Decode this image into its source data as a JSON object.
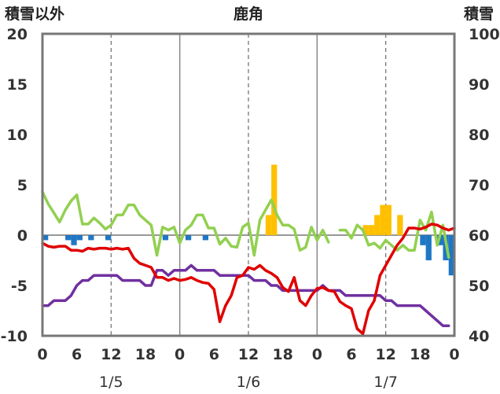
{
  "chart_data": {
    "type": "bar+line",
    "title": "鹿角",
    "ylabel_left": "積雪以外",
    "ylabel_right": "積雪",
    "ylim_left": [
      -10,
      20
    ],
    "ylim_right": [
      40,
      100
    ],
    "yticks_left": [
      "20",
      "15",
      "10",
      "5",
      "0",
      "-5",
      "-10"
    ],
    "yticks_right": [
      "100",
      "90",
      "80",
      "70",
      "60",
      "50",
      "40"
    ],
    "xlim": [
      0,
      72
    ],
    "xticks": [
      {
        "x": 0,
        "label": "0"
      },
      {
        "x": 6,
        "label": "6"
      },
      {
        "x": 12,
        "label": "12"
      },
      {
        "x": 18,
        "label": "18"
      },
      {
        "x": 24,
        "label": "0"
      },
      {
        "x": 30,
        "label": "6"
      },
      {
        "x": 36,
        "label": "12"
      },
      {
        "x": 42,
        "label": "18"
      },
      {
        "x": 48,
        "label": "0"
      },
      {
        "x": 54,
        "label": "6"
      },
      {
        "x": 60,
        "label": "12"
      },
      {
        "x": 66,
        "label": "18"
      },
      {
        "x": 72,
        "label": "0"
      }
    ],
    "day_labels": [
      {
        "x": 12,
        "label": "1/5"
      },
      {
        "x": 36,
        "label": "1/6"
      },
      {
        "x": 60,
        "label": "1/7"
      }
    ],
    "colors": {
      "precip": "#ffc000",
      "snow_change": "#1f77c4",
      "temperature": "#e00000",
      "wind": "#92d050",
      "snow_depth": "#7030a0"
    },
    "bars_precip": [
      {
        "x": 39.5,
        "v": 2
      },
      {
        "x": 40.5,
        "v": 7
      },
      {
        "x": 56.5,
        "v": 1
      },
      {
        "x": 57.5,
        "v": 1
      },
      {
        "x": 58.5,
        "v": 2
      },
      {
        "x": 59.5,
        "v": 3
      },
      {
        "x": 60.5,
        "v": 3
      },
      {
        "x": 62.5,
        "v": 2
      }
    ],
    "bars_snow_change": [
      {
        "x": 0.5,
        "v": -0.5
      },
      {
        "x": 4.5,
        "v": -0.5
      },
      {
        "x": 5.5,
        "v": -1
      },
      {
        "x": 6.5,
        "v": -0.5
      },
      {
        "x": 8.5,
        "v": -0.5
      },
      {
        "x": 11.5,
        "v": -0.5
      },
      {
        "x": 21.5,
        "v": -0.5
      },
      {
        "x": 25.5,
        "v": -0.5
      },
      {
        "x": 28.5,
        "v": -0.5
      },
      {
        "x": 66.5,
        "v": -1
      },
      {
        "x": 67.5,
        "v": -2.5
      },
      {
        "x": 69.5,
        "v": -1
      },
      {
        "x": 70.5,
        "v": -2.5
      },
      {
        "x": 71.5,
        "v": -4
      }
    ],
    "line_temperature": [
      [
        0,
        -0.8
      ],
      [
        1,
        -1.1
      ],
      [
        2,
        -1.2
      ],
      [
        3,
        -1.1
      ],
      [
        4,
        -1.1
      ],
      [
        5,
        -1.5
      ],
      [
        6,
        -1.5
      ],
      [
        7,
        -1.6
      ],
      [
        8,
        -1.3
      ],
      [
        9,
        -1.4
      ],
      [
        10,
        -1.3
      ],
      [
        11,
        -1.3
      ],
      [
        12,
        -1.4
      ],
      [
        13,
        -1.3
      ],
      [
        14,
        -1.4
      ],
      [
        15,
        -1.3
      ],
      [
        16,
        -2.3
      ],
      [
        17,
        -2.8
      ],
      [
        18,
        -3.0
      ],
      [
        19,
        -3.2
      ],
      [
        20,
        -4.2
      ],
      [
        21,
        -4.2
      ],
      [
        22,
        -4.5
      ],
      [
        23,
        -4.3
      ],
      [
        24,
        -4.5
      ],
      [
        25,
        -4.4
      ],
      [
        26,
        -4.2
      ],
      [
        27,
        -4.5
      ],
      [
        28,
        -4.7
      ],
      [
        29,
        -4.8
      ],
      [
        30,
        -5.4
      ],
      [
        31,
        -8.6
      ],
      [
        32,
        -7.0
      ],
      [
        33,
        -6.0
      ],
      [
        34,
        -4.2
      ],
      [
        35,
        -4.0
      ],
      [
        36,
        -3.2
      ],
      [
        37,
        -3.4
      ],
      [
        38,
        -3.0
      ],
      [
        39,
        -3.5
      ],
      [
        40,
        -3.8
      ],
      [
        41,
        -4.2
      ],
      [
        42,
        -5.2
      ],
      [
        43,
        -5.6
      ],
      [
        44,
        -4.2
      ],
      [
        45,
        -6.5
      ],
      [
        46,
        -7.0
      ],
      [
        47,
        -6.0
      ],
      [
        48,
        -5.3
      ],
      [
        49,
        -5.2
      ],
      [
        50,
        -5.5
      ],
      [
        51,
        -5.6
      ],
      [
        52,
        -6.6
      ],
      [
        53,
        -7.0
      ],
      [
        54,
        -7.3
      ],
      [
        55,
        -9.3
      ],
      [
        56,
        -9.8
      ],
      [
        57,
        -7.5
      ],
      [
        58,
        -6.5
      ],
      [
        59,
        -4.0
      ],
      [
        60,
        -3.0
      ],
      [
        61,
        -2.0
      ],
      [
        62,
        -1.0
      ],
      [
        63,
        -0.3
      ],
      [
        64,
        0.7
      ],
      [
        65,
        0.7
      ],
      [
        66,
        0.6
      ],
      [
        67,
        0.8
      ],
      [
        68,
        1.1
      ],
      [
        69,
        1.0
      ],
      [
        70,
        0.7
      ],
      [
        71,
        0.5
      ],
      [
        72,
        0.7
      ]
    ],
    "line_wind": [
      [
        0,
        4.3
      ],
      [
        1,
        3.1
      ],
      [
        2,
        2.2
      ],
      [
        3,
        1.3
      ],
      [
        4,
        2.5
      ],
      [
        5,
        3.4
      ],
      [
        6,
        4.0
      ],
      [
        7,
        1.1
      ],
      [
        8,
        1.1
      ],
      [
        9,
        1.7
      ],
      [
        10,
        1.2
      ],
      [
        11,
        0.6
      ],
      [
        12,
        1.0
      ],
      [
        13,
        2.0
      ],
      [
        14,
        2.0
      ],
      [
        15,
        3.0
      ],
      [
        16,
        3.0
      ],
      [
        17,
        2.0
      ],
      [
        18,
        1.5
      ],
      [
        19,
        1.0
      ],
      [
        20,
        -2.0
      ],
      [
        21,
        0.8
      ],
      [
        22,
        0.5
      ],
      [
        23,
        0.8
      ],
      [
        24,
        -0.8
      ],
      [
        25,
        0.5
      ],
      [
        26,
        1.0
      ],
      [
        27,
        2.0
      ],
      [
        28,
        2.0
      ],
      [
        29,
        0.7
      ],
      [
        30,
        0.7
      ],
      [
        31,
        -0.9
      ],
      [
        32,
        -0.3
      ],
      [
        33,
        -1.1
      ],
      [
        34,
        -1.2
      ],
      [
        35,
        0.8
      ],
      [
        36,
        1.2
      ],
      [
        37,
        -2.0
      ],
      [
        38,
        1.5
      ],
      [
        39,
        2.5
      ],
      [
        40,
        3.5
      ],
      [
        41,
        2.0
      ],
      [
        42,
        1.0
      ],
      [
        43,
        1.0
      ],
      [
        44,
        0.6
      ],
      [
        45,
        -1.5
      ],
      [
        46,
        -1.2
      ],
      [
        47,
        0.8
      ],
      [
        48,
        -0.5
      ],
      [
        49,
        0.5
      ],
      [
        50,
        -0.7
      ],
      [
        null,
        null
      ],
      [
        52,
        0.5
      ],
      [
        53,
        0.5
      ],
      [
        54,
        -0.3
      ],
      [
        55,
        1.0
      ],
      [
        56,
        0.5
      ],
      [
        57,
        -1.0
      ],
      [
        58,
        -0.8
      ],
      [
        59,
        -1.3
      ],
      [
        60,
        -0.5
      ],
      [
        61,
        -1.0
      ],
      [
        62,
        -1.5
      ],
      [
        63,
        -1.0
      ],
      [
        64,
        -1.5
      ],
      [
        65,
        -1.5
      ],
      [
        66,
        1.5
      ],
      [
        67,
        0.5
      ],
      [
        68,
        2.3
      ],
      [
        69,
        -1.0
      ],
      [
        70,
        1.0
      ],
      [
        71,
        -2.2
      ]
    ],
    "line_snow_depth": [
      [
        0,
        46
      ],
      [
        1,
        46
      ],
      [
        2,
        47
      ],
      [
        3,
        47
      ],
      [
        4,
        47
      ],
      [
        5,
        48
      ],
      [
        6,
        50
      ],
      [
        7,
        51
      ],
      [
        8,
        51
      ],
      [
        9,
        52
      ],
      [
        10,
        52
      ],
      [
        11,
        52
      ],
      [
        12,
        52
      ],
      [
        13,
        52
      ],
      [
        14,
        51
      ],
      [
        15,
        51
      ],
      [
        16,
        51
      ],
      [
        17,
        51
      ],
      [
        18,
        50
      ],
      [
        19,
        50
      ],
      [
        20,
        53
      ],
      [
        21,
        53
      ],
      [
        22,
        52
      ],
      [
        23,
        53
      ],
      [
        24,
        53
      ],
      [
        25,
        53
      ],
      [
        26,
        54
      ],
      [
        27,
        53
      ],
      [
        28,
        53
      ],
      [
        29,
        53
      ],
      [
        30,
        53
      ],
      [
        31,
        52
      ],
      [
        32,
        52
      ],
      [
        33,
        52
      ],
      [
        34,
        52
      ],
      [
        35,
        52
      ],
      [
        36,
        52
      ],
      [
        37,
        51
      ],
      [
        38,
        51
      ],
      [
        39,
        51
      ],
      [
        40,
        50
      ],
      [
        41,
        50
      ],
      [
        42,
        49
      ],
      [
        43,
        49
      ],
      [
        44,
        49
      ],
      [
        45,
        49
      ],
      [
        46,
        49
      ],
      [
        47,
        49
      ],
      [
        48,
        49
      ],
      [
        49,
        50
      ],
      [
        50,
        49
      ],
      [
        51,
        49
      ],
      [
        52,
        49
      ],
      [
        53,
        48
      ],
      [
        54,
        48
      ],
      [
        55,
        48
      ],
      [
        56,
        48
      ],
      [
        57,
        48
      ],
      [
        58,
        48
      ],
      [
        59,
        48
      ],
      [
        60,
        47
      ],
      [
        61,
        47
      ],
      [
        62,
        46
      ],
      [
        63,
        46
      ],
      [
        64,
        46
      ],
      [
        65,
        46
      ],
      [
        66,
        46
      ],
      [
        67,
        45
      ],
      [
        68,
        44
      ],
      [
        69,
        43
      ],
      [
        70,
        42
      ],
      [
        71,
        42
      ]
    ]
  }
}
